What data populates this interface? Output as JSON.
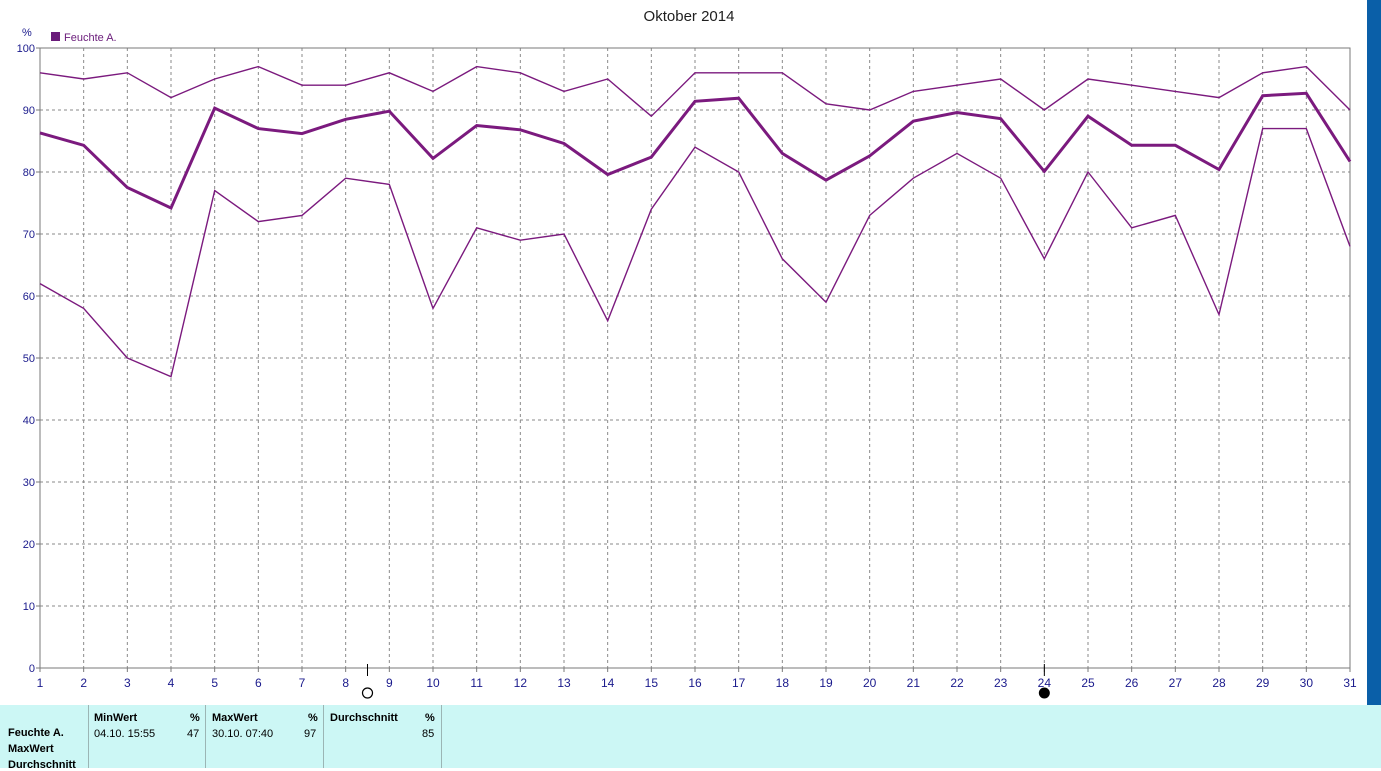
{
  "chart_data": {
    "type": "line",
    "title": "Oktober 2014",
    "ylabel": "%",
    "ylim": [
      0,
      100
    ],
    "yticks": [
      0,
      10,
      20,
      30,
      40,
      50,
      60,
      70,
      80,
      90,
      100
    ],
    "x": [
      1,
      2,
      3,
      4,
      5,
      6,
      7,
      8,
      9,
      10,
      11,
      12,
      13,
      14,
      15,
      16,
      17,
      18,
      19,
      20,
      21,
      22,
      23,
      24,
      25,
      26,
      27,
      28,
      29,
      30,
      31
    ],
    "grid": true,
    "legend": {
      "label": "Feuchte A.",
      "placement": "top-left"
    },
    "color": "#7b1a7e",
    "series": [
      {
        "values": [
          96,
          95,
          96,
          92,
          95,
          97,
          94,
          94,
          96,
          93,
          97,
          96,
          93,
          95,
          89,
          96,
          96,
          96,
          91,
          90,
          93,
          94,
          95,
          90,
          95,
          94,
          93,
          92,
          96,
          97,
          90
        ]
      },
      {
        "values": [
          86.3,
          84.3,
          77.5,
          74.2,
          90.3,
          87,
          86.2,
          88.5,
          89.8,
          82.2,
          87.5,
          86.8,
          84.6,
          79.6,
          82.4,
          91.4,
          91.9,
          83,
          78.7,
          82.6,
          88.2,
          89.6,
          88.6,
          80.1,
          89,
          84.3,
          84.3,
          80.4,
          92.3,
          92.7,
          81.7
        ]
      },
      {
        "values": [
          62,
          58,
          50,
          47,
          77,
          72,
          73,
          79,
          78,
          58,
          71,
          69,
          70,
          56,
          74,
          84,
          80,
          66,
          59,
          73,
          79,
          83,
          79,
          66,
          80,
          71,
          73,
          57,
          87,
          87,
          68
        ]
      }
    ],
    "markers": [
      {
        "x": 8.5,
        "symbol": "open-circle"
      },
      {
        "x": 24,
        "symbol": "filled-circle"
      }
    ]
  },
  "stats": {
    "row_labels": [
      "Feuchte A.",
      "MaxWert",
      "Durchschnitt"
    ],
    "columns": [
      {
        "header": "MinWert",
        "unit": "%",
        "date": "04.10.  15:55",
        "value": "47"
      },
      {
        "header": "MaxWert",
        "unit": "%",
        "date": "30.10.  07:40",
        "value": "97"
      },
      {
        "header": "Durchschnitt",
        "unit": "%",
        "date": "",
        "value": "85"
      }
    ]
  }
}
